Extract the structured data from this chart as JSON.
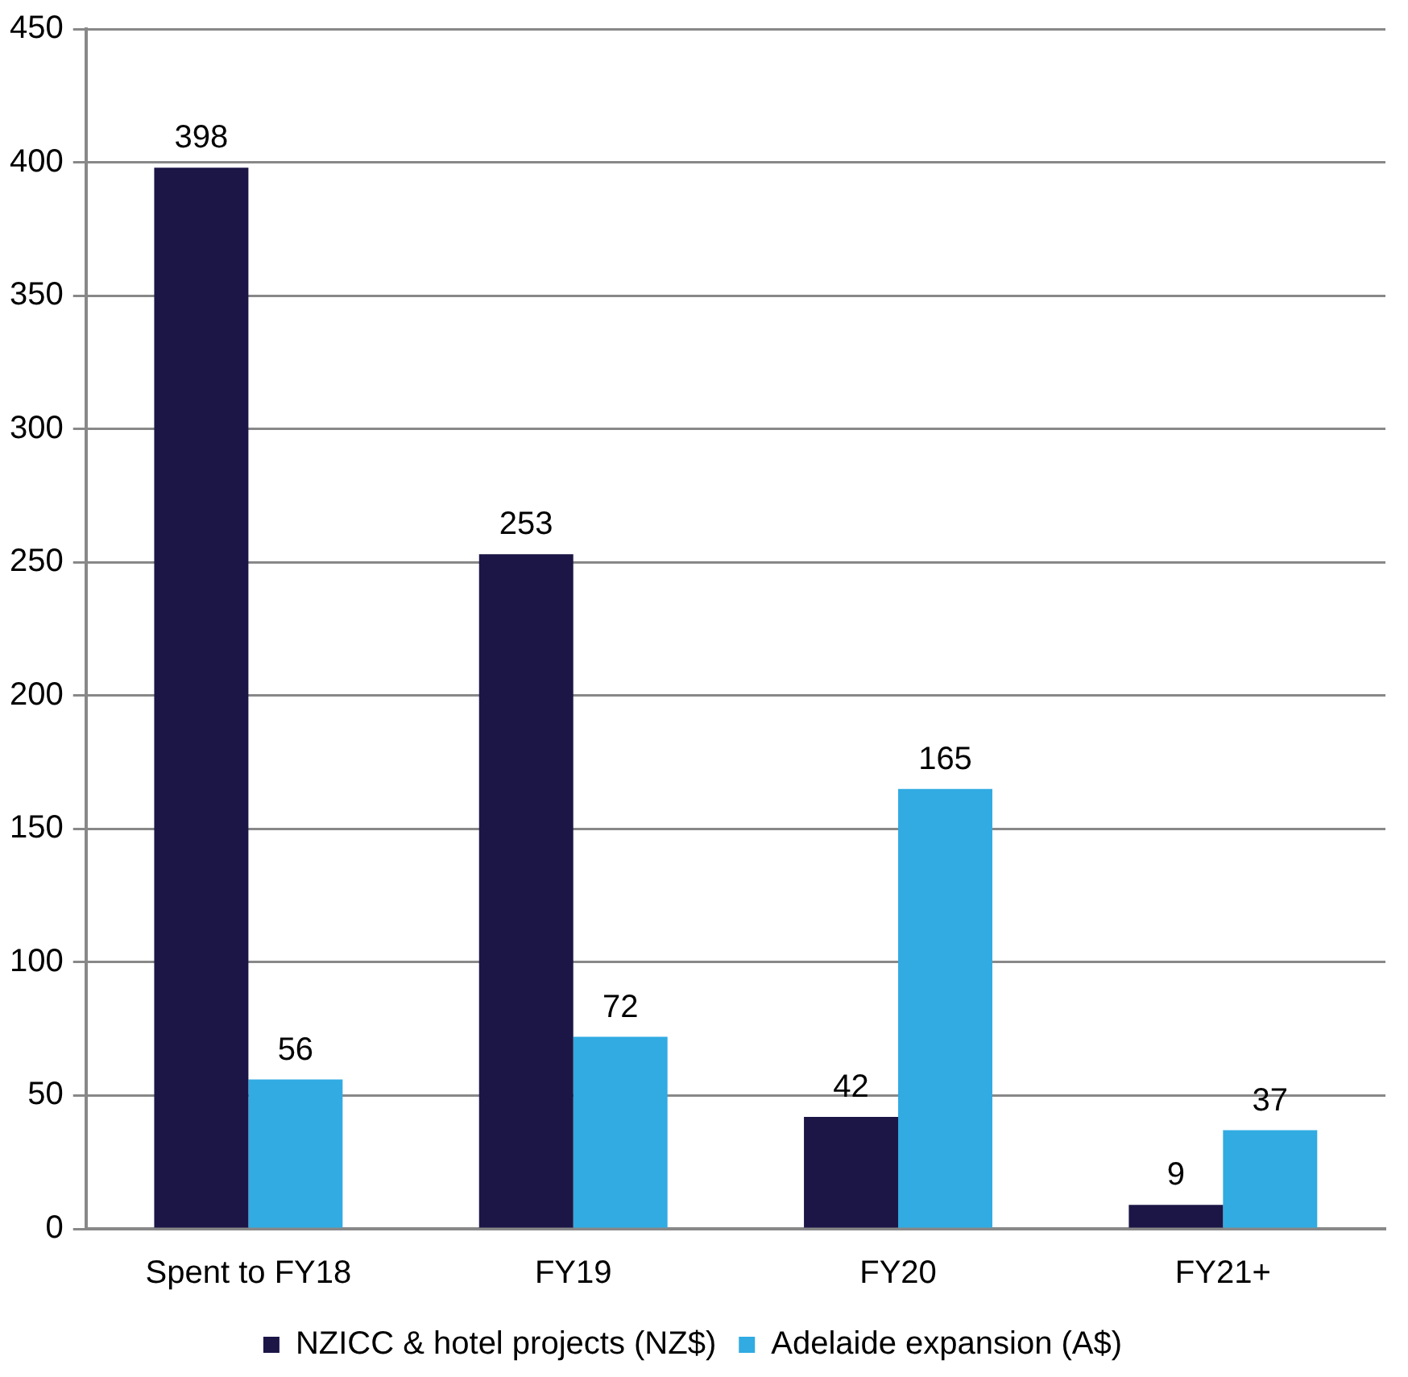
{
  "chart_data": {
    "type": "bar",
    "categories": [
      "Spent to FY18",
      "FY19",
      "FY20",
      "FY21+"
    ],
    "series": [
      {
        "name": "NZICC & hotel projects (NZ$)",
        "color": "#1b1646",
        "values": [
          398,
          253,
          42,
          9
        ]
      },
      {
        "name": "Adelaide expansion (A$)",
        "color": "#31abe2",
        "values": [
          56,
          72,
          165,
          37
        ]
      }
    ],
    "ylim": [
      0,
      450
    ],
    "yticks": [
      0,
      50,
      100,
      150,
      200,
      250,
      300,
      350,
      400,
      450
    ],
    "grid": "y",
    "legend": "bottom",
    "data_labels": true
  }
}
